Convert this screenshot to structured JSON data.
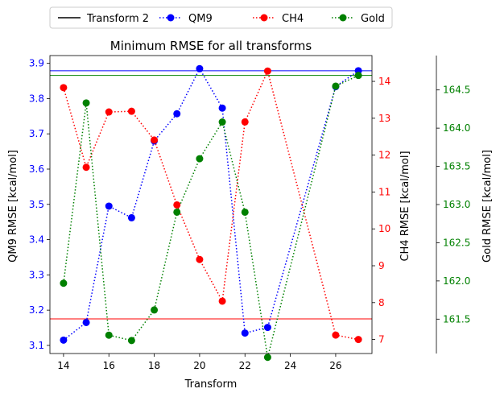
{
  "chart_data": {
    "type": "line",
    "title": "Minimum RMSE for all transforms",
    "xlabel": "Transform",
    "xlim": [
      13.4,
      27.6
    ],
    "xticks": [
      14,
      16,
      18,
      20,
      22,
      24,
      26
    ],
    "legend": {
      "placement": "top-outside",
      "entries": [
        {
          "label": "Transform 2",
          "style": "solid",
          "color": "#000000",
          "marker": false
        },
        {
          "label": "QM9",
          "style": "dotted",
          "color": "#0000ff",
          "marker": true
        },
        {
          "label": "CH4",
          "style": "dotted",
          "color": "#ff0000",
          "marker": true
        },
        {
          "label": "Gold",
          "style": "dotted",
          "color": "#008000",
          "marker": true
        }
      ]
    },
    "axes": {
      "qm9": {
        "label": "QM9 RMSE [kcal/mol]",
        "color": "#0000ff",
        "ylim": [
          3.077,
          3.922
        ],
        "ticks": [
          "3.1",
          "3.2",
          "3.3",
          "3.4",
          "3.5",
          "3.6",
          "3.7",
          "3.8",
          "3.9"
        ]
      },
      "ch4": {
        "label": "CH4 RMSE [kcal/mol]",
        "color": "#ff0000",
        "ylim": [
          6.62,
          14.7
        ],
        "ticks": [
          "7",
          "8",
          "9",
          "10",
          "11",
          "12",
          "13",
          "14"
        ]
      },
      "gold": {
        "label": "Gold RMSE [kcal/mol]",
        "color": "#008000",
        "ylim": [
          161.05,
          164.95
        ],
        "ticks": [
          "161.5",
          "162.0",
          "162.5",
          "163.0",
          "163.5",
          "164.0",
          "164.5"
        ]
      }
    },
    "x": [
      14,
      15,
      16,
      17,
      18,
      19,
      20,
      21,
      22,
      23,
      26,
      27
    ],
    "series": [
      {
        "name": "QM9",
        "axis": "qm9",
        "color": "#0000ff",
        "values": [
          3.115,
          3.165,
          3.495,
          3.462,
          3.68,
          3.757,
          3.885,
          3.773,
          3.135,
          3.151,
          3.834,
          3.879
        ],
        "transform2": 3.879
      },
      {
        "name": "CH4",
        "axis": "ch4",
        "color": "#ff0000",
        "values": [
          13.83,
          11.67,
          13.17,
          13.19,
          12.41,
          10.65,
          9.17,
          8.04,
          12.9,
          14.28,
          7.12,
          7.0
        ],
        "transform2": 7.56
      },
      {
        "name": "Gold",
        "axis": "gold",
        "color": "#008000",
        "values": [
          161.97,
          164.33,
          161.29,
          161.22,
          161.62,
          162.9,
          163.6,
          164.08,
          162.9,
          161.0,
          164.55,
          164.69
        ],
        "transform2": 164.69
      }
    ]
  }
}
